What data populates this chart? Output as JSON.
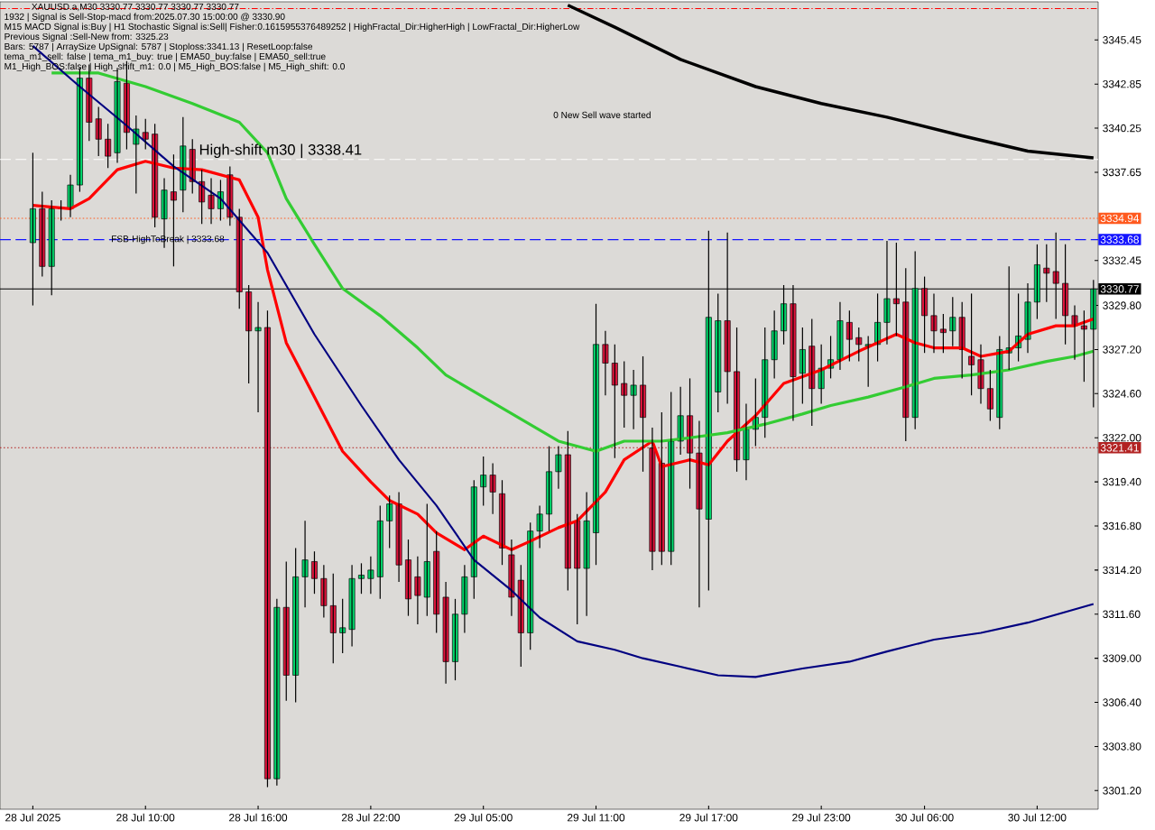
{
  "chart_data": {
    "type": "candlestick",
    "title": "XAUUSD.a,M30  3330.77 3330.77 3330.77 3330.77",
    "annotations": [
      "1932 | Signal is Sell-Stop-macd from:2025.07.30 15:00:00 @ 3330.90",
      "M15 MACD Signal is:Buy | H1 Stochastic Signal is:Sell| Fisher:0.1615955376489252 | HighFractal_Dir:HigherHigh | LowFractal_Dir:HigherLow",
      "Previous Signal :Sell-New from: 3325.23",
      "Bars: 5787 | ArraySize UpSignal: 5787 | Stoploss:3341.13 | ResetLoop:false",
      "tema_m1_sell: false | tema_m1_buy: true | EMA50_buy:false | EMA50_sell:true",
      "M1_High_BOS:false | High_shift_m1: 0.0 | M5_High_BOS:false | M5_High_shift: 0.0",
      "0 New Sell wave started",
      {
        "text": "FSB-HighToBreak | 3333.68",
        "y": 3333.68
      },
      {
        "text": "High-shift m30 | 3338.41",
        "y": 3338.41
      }
    ],
    "categories": [
      "28 Jul 2025",
      null,
      null,
      null,
      null,
      null,
      null,
      null,
      null,
      null,
      null,
      null,
      "28 Jul 10:00",
      null,
      null,
      null,
      null,
      null,
      null,
      null,
      null,
      null,
      null,
      null,
      "28 Jul 16:00",
      null,
      null,
      null,
      null,
      null,
      null,
      null,
      null,
      null,
      null,
      null,
      "28 Jul 22:00",
      null,
      null,
      null,
      null,
      null,
      null,
      null,
      null,
      null,
      null,
      null,
      "29 Jul 05:00",
      null,
      null,
      null,
      null,
      null,
      null,
      null,
      null,
      null,
      null,
      null,
      "29 Jul 11:00",
      null,
      null,
      null,
      null,
      null,
      null,
      null,
      null,
      null,
      null,
      null,
      "29 Jul 17:00",
      null,
      null,
      null,
      null,
      null,
      null,
      null,
      null,
      null,
      null,
      null,
      "29 Jul 23:00",
      null,
      null,
      null,
      null,
      null,
      null,
      null,
      null,
      null,
      null,
      "30 Jul 06:00",
      null,
      null,
      null,
      null,
      null,
      null,
      null,
      null,
      null,
      null,
      null,
      "30 Jul 12:00",
      null,
      null,
      null,
      null,
      null,
      null
    ],
    "ohlc": [
      [
        3333.5,
        3338.8,
        3329.8,
        3335.5
      ],
      [
        3335.5,
        3336.5,
        3331.5,
        3332.1
      ],
      [
        3332.1,
        3336.0,
        3330.4,
        3335.5
      ],
      [
        3335.5,
        3336.0,
        3334.8,
        3335.6
      ],
      [
        3335.5,
        3337.5,
        3335.0,
        3336.9
      ],
      [
        3336.9,
        3343.8,
        3336.5,
        3343.2
      ],
      [
        3343.2,
        3344.0,
        3339.5,
        3340.6
      ],
      [
        3340.8,
        3341.5,
        3338.6,
        3339.6
      ],
      [
        3339.6,
        3340.5,
        3337.9,
        3338.6
      ],
      [
        3338.8,
        3343.8,
        3338.2,
        3343.0
      ],
      [
        3342.9,
        3344.2,
        3339.0,
        3340.0
      ],
      [
        3339.3,
        3341.0,
        3336.4,
        3340.2
      ],
      [
        3340.0,
        3340.8,
        3339.0,
        3339.6
      ],
      [
        3339.9,
        3340.5,
        3334.4,
        3335.0
      ],
      [
        3334.9,
        3337.3,
        3333.2,
        3336.6
      ],
      [
        3336.5,
        3338.7,
        3332.1,
        3336.0
      ],
      [
        3336.6,
        3340.9,
        3335.3,
        3339.2
      ],
      [
        3339.0,
        3339.6,
        3336.4,
        3337.1
      ],
      [
        3337.1,
        3337.8,
        3334.6,
        3335.9
      ],
      [
        3336.3,
        3337.3,
        3334.6,
        3335.5
      ],
      [
        3335.5,
        3337.2,
        3334.8,
        3336.5
      ],
      [
        3337.5,
        3338.0,
        3334.5,
        3335.0
      ],
      [
        3335.0,
        3335.5,
        3329.6,
        3330.6
      ],
      [
        3330.6,
        3331.0,
        3325.2,
        3328.3
      ],
      [
        3328.3,
        3330.0,
        3323.5,
        3328.5
      ],
      [
        3328.5,
        3329.5,
        3301.4,
        3301.9
      ],
      [
        3301.9,
        3312.5,
        3301.5,
        3312.0
      ],
      [
        3312.0,
        3314.7,
        3306.5,
        3308.0
      ],
      [
        3308.0,
        3315.5,
        3306.4,
        3313.8
      ],
      [
        3313.8,
        3317.1,
        3312.0,
        3314.8
      ],
      [
        3314.7,
        3315.3,
        3312.8,
        3313.7
      ],
      [
        3313.7,
        3314.5,
        3311.4,
        3312.1
      ],
      [
        3312.1,
        3314.0,
        3308.7,
        3310.5
      ],
      [
        3310.5,
        3312.5,
        3309.3,
        3310.8
      ],
      [
        3310.7,
        3314.5,
        3309.7,
        3313.7
      ],
      [
        3313.7,
        3314.6,
        3312.8,
        3313.9
      ],
      [
        3313.7,
        3315.0,
        3312.8,
        3314.2
      ],
      [
        3313.8,
        3318.0,
        3312.5,
        3317.1
      ],
      [
        3317.1,
        3318.6,
        3315.5,
        3318.1
      ],
      [
        3318.1,
        3318.8,
        3313.5,
        3314.5
      ],
      [
        3314.8,
        3316.0,
        3311.5,
        3312.5
      ],
      [
        3313.8,
        3315.0,
        3311.0,
        3312.7
      ],
      [
        3312.6,
        3318.1,
        3311.5,
        3314.7
      ],
      [
        3315.3,
        3316.5,
        3310.5,
        3311.6
      ],
      [
        3312.6,
        3313.5,
        3307.5,
        3308.8
      ],
      [
        3308.8,
        3312.5,
        3307.7,
        3311.6
      ],
      [
        3311.6,
        3314.5,
        3310.5,
        3313.8
      ],
      [
        3313.8,
        3319.5,
        3312.5,
        3319.1
      ],
      [
        3319.1,
        3320.9,
        3318.0,
        3319.8
      ],
      [
        3319.8,
        3320.5,
        3317.5,
        3318.8
      ],
      [
        3318.7,
        3319.5,
        3314.5,
        3315.5
      ],
      [
        3315.1,
        3316.0,
        3311.5,
        3312.6
      ],
      [
        3313.6,
        3314.5,
        3308.5,
        3310.5
      ],
      [
        3310.5,
        3317.0,
        3309.5,
        3316.5
      ],
      [
        3316.5,
        3318.0,
        3315.5,
        3317.5
      ],
      [
        3317.5,
        3321.5,
        3316.5,
        3320.0
      ],
      [
        3320.0,
        3321.5,
        3319.0,
        3321.0
      ],
      [
        3321.0,
        3322.4,
        3313.0,
        3314.3
      ],
      [
        3317.1,
        3317.5,
        3311.0,
        3314.3
      ],
      [
        3314.3,
        3318.8,
        3311.5,
        3317.1
      ],
      [
        3316.4,
        3329.9,
        3314.5,
        3327.5
      ],
      [
        3327.5,
        3328.3,
        3324.5,
        3326.4
      ],
      [
        3326.4,
        3327.5,
        3320.8,
        3325.1
      ],
      [
        3325.2,
        3326.5,
        3322.6,
        3324.5
      ],
      [
        3324.5,
        3326.0,
        3322.5,
        3325.1
      ],
      [
        3325.1,
        3326.8,
        3320.0,
        3323.2
      ],
      [
        3321.4,
        3322.6,
        3314.2,
        3315.3
      ],
      [
        3320.5,
        3323.5,
        3314.5,
        3315.3
      ],
      [
        3315.3,
        3324.7,
        3314.5,
        3321.8
      ],
      [
        3321.8,
        3325.0,
        3321.0,
        3323.3
      ],
      [
        3323.3,
        3325.5,
        3319.0,
        3321.1
      ],
      [
        3321.1,
        3323.0,
        3312.0,
        3317.8
      ],
      [
        3317.2,
        3334.2,
        3313.0,
        3329.1
      ],
      [
        3324.7,
        3330.5,
        3323.5,
        3328.9
      ],
      [
        3328.9,
        3334.1,
        3324.0,
        3325.9
      ],
      [
        3325.9,
        3328.5,
        3320.0,
        3320.7
      ],
      [
        3320.7,
        3324.0,
        3319.5,
        3322.5
      ],
      [
        3322.5,
        3325.5,
        3321.5,
        3323.2
      ],
      [
        3323.2,
        3328.5,
        3322.0,
        3326.6
      ],
      [
        3326.6,
        3329.5,
        3325.5,
        3328.3
      ],
      [
        3328.3,
        3331.0,
        3327.5,
        3329.9
      ],
      [
        3329.9,
        3331.0,
        3323.0,
        3325.6
      ],
      [
        3325.8,
        3328.5,
        3324.0,
        3327.2
      ],
      [
        3327.4,
        3329.0,
        3322.7,
        3324.9
      ],
      [
        3324.9,
        3327.5,
        3324.0,
        3326.1
      ],
      [
        3326.1,
        3328.0,
        3325.5,
        3326.6
      ],
      [
        3326.6,
        3330.0,
        3326.0,
        3328.9
      ],
      [
        3328.8,
        3329.5,
        3326.5,
        3327.8
      ],
      [
        3327.9,
        3328.5,
        3326.5,
        3327.5
      ],
      [
        3327.4,
        3328.0,
        3325.0,
        3327.5
      ],
      [
        3327.5,
        3330.5,
        3326.5,
        3328.8
      ],
      [
        3328.8,
        3333.6,
        3327.5,
        3330.2
      ],
      [
        3330.2,
        3333.5,
        3328.0,
        3329.9
      ],
      [
        3330.0,
        3332.0,
        3321.8,
        3323.2
      ],
      [
        3323.2,
        3333.0,
        3322.5,
        3330.8
      ],
      [
        3330.8,
        3331.5,
        3327.0,
        3329.2
      ],
      [
        3329.2,
        3330.5,
        3327.0,
        3328.3
      ],
      [
        3328.4,
        3329.3,
        3327.0,
        3328.2
      ],
      [
        3328.3,
        3330.3,
        3327.4,
        3329.1
      ],
      [
        3329.1,
        3330.0,
        3325.5,
        3327.2
      ],
      [
        3326.8,
        3330.5,
        3324.5,
        3326.3
      ],
      [
        3326.6,
        3327.5,
        3324.0,
        3324.9
      ],
      [
        3324.9,
        3326.0,
        3323.0,
        3323.7
      ],
      [
        3323.2,
        3328.0,
        3322.5,
        3327.2
      ],
      [
        3327.0,
        3332.1,
        3326.0,
        3327.3
      ],
      [
        3327.3,
        3330.5,
        3326.5,
        3328.0
      ],
      [
        3327.8,
        3331.1,
        3327.0,
        3330.0
      ],
      [
        3330.0,
        3333.4,
        3329.0,
        3332.2
      ],
      [
        3332.0,
        3333.4,
        3330.0,
        3331.7
      ],
      [
        3331.8,
        3334.1,
        3329.0,
        3331.1
      ],
      [
        3331.1,
        3333.4,
        3327.5,
        3329.2
      ],
      [
        3329.2,
        3329.8,
        3326.6,
        3328.6
      ],
      [
        3328.6,
        3329.5,
        3325.3,
        3328.4
      ],
      [
        3328.4,
        3331.3,
        3323.8,
        3330.77
      ]
    ],
    "series": [
      {
        "type": "line",
        "color": "#ff0000",
        "values": [
          3335.7,
          null,
          null,
          null,
          3335.5,
          null,
          3336.1,
          null,
          null,
          3337.8,
          null,
          null,
          3338.3,
          null,
          null,
          3337.9,
          null,
          null,
          3337.8,
          null,
          null,
          null,
          3337.2,
          null,
          3335.0,
          3331.9,
          null,
          3327.6,
          null,
          null,
          3324.4,
          null,
          null,
          3321.2,
          null,
          null,
          3319.4,
          null,
          3318.3,
          null,
          null,
          3317.5,
          null,
          3316.4,
          null,
          null,
          3315.4,
          null,
          3316.2,
          null,
          null,
          3315.4,
          null,
          3315.9,
          null,
          null,
          3316.7,
          null,
          3317.1,
          null,
          null,
          3318.8,
          null,
          3320.7,
          null,
          null,
          3321.8,
          3320.3,
          null,
          null,
          3320.7,
          null,
          3320.4,
          null,
          3321.8,
          null,
          null,
          3323.3,
          null,
          null,
          3325.2,
          null,
          null,
          null,
          3326.0,
          null,
          null,
          null,
          3327.1,
          null,
          null,
          null,
          3328.1,
          null,
          3327.6,
          null,
          3327.3,
          null,
          null,
          3327.3,
          null,
          3326.8,
          null,
          null,
          3327.1,
          null,
          3328.1,
          null,
          null,
          3328.6,
          null,
          3328.6,
          null,
          3329.0
        ]
      },
      {
        "type": "line",
        "color": "#33cc33",
        "values": [
          null,
          null,
          3343.5,
          null,
          null,
          null,
          null,
          3343.5,
          null,
          null,
          null,
          null,
          3342.7,
          null,
          null,
          null,
          null,
          3341.7,
          null,
          null,
          null,
          null,
          3340.6,
          null,
          null,
          3338.8,
          null,
          3336.1,
          null,
          null,
          3333.4,
          null,
          null,
          3330.8,
          null,
          null,
          null,
          3329.2,
          null,
          null,
          null,
          3327.3,
          null,
          null,
          3325.7,
          null,
          null,
          null,
          3324.4,
          null,
          null,
          null,
          3323.1,
          null,
          null,
          null,
          3321.8,
          null,
          3321.5,
          null,
          3321.2,
          null,
          null,
          3321.8,
          null,
          null,
          null,
          3321.8,
          null,
          null,
          3322.0,
          null,
          null,
          null,
          3322.3,
          null,
          null,
          null,
          3322.8,
          null,
          null,
          null,
          3323.4,
          null,
          null,
          3323.9,
          null,
          null,
          null,
          3324.4,
          null,
          null,
          null,
          3325.0,
          null,
          null,
          3325.5,
          null,
          null,
          null,
          3325.7,
          null,
          null,
          null,
          3326.0,
          null,
          null,
          null,
          3326.5,
          null,
          null,
          3326.8,
          null,
          3327.1
        ]
      },
      {
        "type": "line",
        "color": "#000080",
        "values": [
          3345.1,
          null,
          null,
          null,
          null,
          3342.7,
          null,
          null,
          null,
          null,
          3340.4,
          null,
          null,
          null,
          null,
          3338.0,
          null,
          null,
          null,
          null,
          3336.1,
          null,
          null,
          null,
          null,
          3332.9,
          null,
          null,
          null,
          null,
          3328.1,
          null,
          null,
          null,
          null,
          3323.9,
          null,
          null,
          null,
          3320.7,
          null,
          null,
          null,
          3318.0,
          null,
          null,
          null,
          3314.8,
          null,
          null,
          null,
          3313.0,
          null,
          null,
          3311.4,
          null,
          null,
          null,
          3310.0,
          null,
          null,
          null,
          3309.5,
          null,
          null,
          3309.0,
          null,
          null,
          null,
          3308.5,
          null,
          null,
          null,
          3308.0,
          null,
          null,
          null,
          3307.9,
          null,
          null,
          null,
          null,
          3308.4,
          null,
          null,
          null,
          null,
          3308.8,
          null,
          null,
          null,
          3309.4,
          null,
          null,
          null,
          null,
          3310.1,
          null,
          null,
          null,
          null,
          3310.5,
          null,
          null,
          null,
          null,
          3311.1,
          null,
          null,
          null,
          null,
          null,
          null,
          3312.2
        ]
      },
      {
        "type": "line",
        "color": "#000000",
        "values": [
          null,
          null,
          null,
          null,
          null,
          null,
          null,
          null,
          null,
          null,
          null,
          null,
          null,
          null,
          null,
          null,
          null,
          null,
          null,
          null,
          null,
          null,
          null,
          null,
          null,
          null,
          null,
          null,
          null,
          null,
          null,
          null,
          null,
          null,
          null,
          null,
          null,
          null,
          null,
          null,
          null,
          null,
          null,
          null,
          null,
          null,
          null,
          null,
          null,
          null,
          null,
          null,
          null,
          null,
          null,
          null,
          null,
          3347.5,
          null,
          null,
          null,
          null,
          3346.2,
          null,
          null,
          null,
          null,
          null,
          null,
          3344.3,
          null,
          null,
          null,
          null,
          null,
          null,
          null,
          3342.7,
          null,
          null,
          null,
          null,
          null,
          null,
          3341.7,
          null,
          null,
          null,
          null,
          null,
          null,
          3340.9,
          null,
          null,
          null,
          null,
          null,
          null,
          null,
          3339.8,
          null,
          null,
          null,
          null,
          null,
          null,
          3338.9,
          null,
          null,
          null,
          null,
          null,
          null,
          3338.5
        ]
      }
    ],
    "ref_lines": [
      {
        "axis": "y",
        "value": 3347.3,
        "color": "#ff0000",
        "line_style": "dashdotted"
      },
      {
        "axis": "y",
        "value": 3338.41,
        "color": "#ffffff",
        "line_style": "dashed"
      },
      {
        "axis": "y",
        "value": 3334.94,
        "label": "3334.94",
        "color": "#ff5a1f",
        "line_style": "dotted"
      },
      {
        "axis": "y",
        "value": 3333.68,
        "label": "3333.68",
        "color": "#1414ff",
        "line_style": "dashed"
      },
      {
        "axis": "y",
        "value": 3330.77,
        "label": "3330.77",
        "color": "#000000",
        "line_style": "solid"
      },
      {
        "axis": "y",
        "value": 3321.41,
        "label": "3321.41",
        "color": "#b22222",
        "line_style": "dotted"
      }
    ],
    "ylim": [
      3300.1,
      3347.7
    ],
    "yticks": [
      {
        "value": 3345.45,
        "label": "3345.45"
      },
      {
        "value": 3342.85,
        "label": "3342.85"
      },
      {
        "value": 3340.25,
        "label": "3340.25"
      },
      {
        "value": 3337.65,
        "label": "3337.65"
      },
      {
        "value": 3332.45,
        "label": "3332.45"
      },
      {
        "value": 3329.8,
        "label": "3329.80"
      },
      {
        "value": 3327.2,
        "label": "3327.20"
      },
      {
        "value": 3324.6,
        "label": "3324.60"
      },
      {
        "value": 3322.0,
        "label": "3322.00"
      },
      {
        "value": 3319.4,
        "label": "3319.40"
      },
      {
        "value": 3316.8,
        "label": "3316.80"
      },
      {
        "value": 3314.2,
        "label": "3314.20"
      },
      {
        "value": 3311.6,
        "label": "3311.60"
      },
      {
        "value": 3309.0,
        "label": "3309.00"
      },
      {
        "value": 3306.4,
        "label": "3306.40"
      },
      {
        "value": 3303.8,
        "label": "3303.80"
      },
      {
        "value": 3301.2,
        "label": "3301.20"
      }
    ],
    "grid": false
  }
}
